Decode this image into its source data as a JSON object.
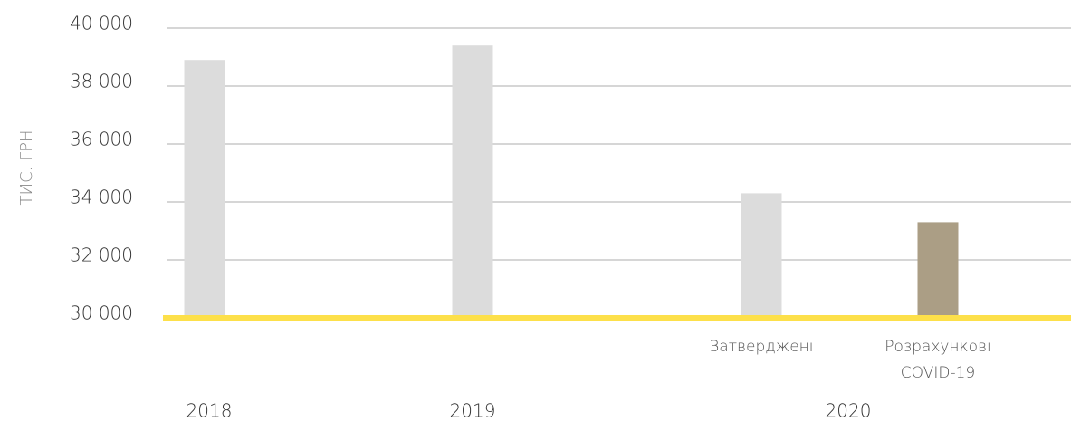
{
  "chart_data": {
    "type": "bar",
    "y_axis_label": "ТИС. ГРН",
    "groups": [
      {
        "name": "2018",
        "categories": [
          null
        ],
        "values": [
          38900
        ],
        "colors": [
          "#dcdcdc"
        ]
      },
      {
        "name": "2019",
        "categories": [
          null
        ],
        "values": [
          39400
        ],
        "colors": [
          "#dcdcdc"
        ]
      },
      {
        "name": "2020",
        "categories": [
          "Затверджені",
          "Розрахункові COVID-19"
        ],
        "values": [
          34300,
          33300
        ],
        "colors": [
          "#dcdcdc",
          "#ab9e85"
        ]
      }
    ],
    "ylim": [
      30000,
      40000
    ],
    "yticks": [
      {
        "value": 30000,
        "label": "30 000"
      },
      {
        "value": 32000,
        "label": "32 000"
      },
      {
        "value": 34000,
        "label": "34 000"
      },
      {
        "value": 36000,
        "label": "36 000"
      },
      {
        "value": 38000,
        "label": "38 000"
      },
      {
        "value": 40000,
        "label": "40 000"
      }
    ],
    "grid": true,
    "baseline_color": "#fde04a"
  }
}
